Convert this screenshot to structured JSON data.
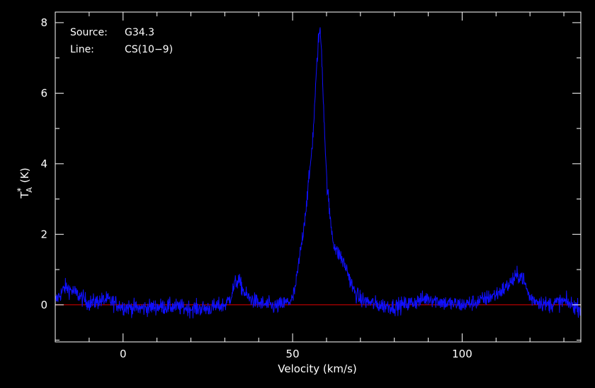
{
  "chart_data": {
    "type": "line",
    "info": {
      "source_label": "Source:",
      "source_value": "G34.3",
      "line_label": "Line:",
      "line_value": "CS(10−9)"
    },
    "xlabel": "Velocity (km/s)",
    "ylabel": {
      "main": "T",
      "sup": "*",
      "sub": "A",
      "unit": "(K)"
    },
    "xlim": [
      -20,
      135
    ],
    "ylim": [
      -1.05,
      8.3
    ],
    "x_ticks": [
      0,
      50,
      100
    ],
    "x_tick_labels": [
      "0",
      "50",
      "100"
    ],
    "y_ticks": [
      0,
      2,
      4,
      6,
      8
    ],
    "y_tick_labels": [
      "0",
      "2",
      "4",
      "6",
      "8"
    ],
    "baseline": 0,
    "grid": false,
    "colors": {
      "background": "#000000",
      "frame": "#ffffff",
      "series": "#1010ff",
      "baseline": "#dd0000"
    },
    "series": [
      {
        "x": [
          -20,
          -17,
          -15,
          -10,
          -5,
          0,
          5,
          10,
          15,
          20,
          25,
          30,
          31,
          32,
          33,
          34,
          35,
          36,
          37,
          40,
          45,
          48,
          50,
          51,
          52,
          53,
          54,
          55,
          56,
          57,
          57.5,
          58,
          58.5,
          59,
          60,
          61,
          62,
          63,
          64,
          65,
          66,
          67,
          68,
          70,
          75,
          80,
          85,
          90,
          95,
          100,
          105,
          110,
          113,
          115,
          116,
          117,
          118,
          119,
          120,
          125,
          130,
          135
        ],
        "y": [
          0.1,
          0.5,
          0.4,
          0.05,
          0.15,
          -0.05,
          -0.1,
          -0.05,
          -0.05,
          -0.1,
          -0.1,
          0.0,
          0.1,
          0.3,
          0.6,
          0.7,
          0.5,
          0.3,
          0.2,
          0.05,
          -0.05,
          0.05,
          0.15,
          0.6,
          1.3,
          2.0,
          2.8,
          3.7,
          4.8,
          6.5,
          7.4,
          7.8,
          7.3,
          6.0,
          3.6,
          2.5,
          1.8,
          1.5,
          1.4,
          1.2,
          1.0,
          0.7,
          0.4,
          0.15,
          0.0,
          -0.05,
          0.05,
          0.2,
          0.05,
          0.0,
          0.1,
          0.3,
          0.5,
          0.7,
          0.8,
          0.85,
          0.75,
          0.45,
          0.2,
          0.0,
          0.1,
          -0.1
        ]
      }
    ]
  }
}
